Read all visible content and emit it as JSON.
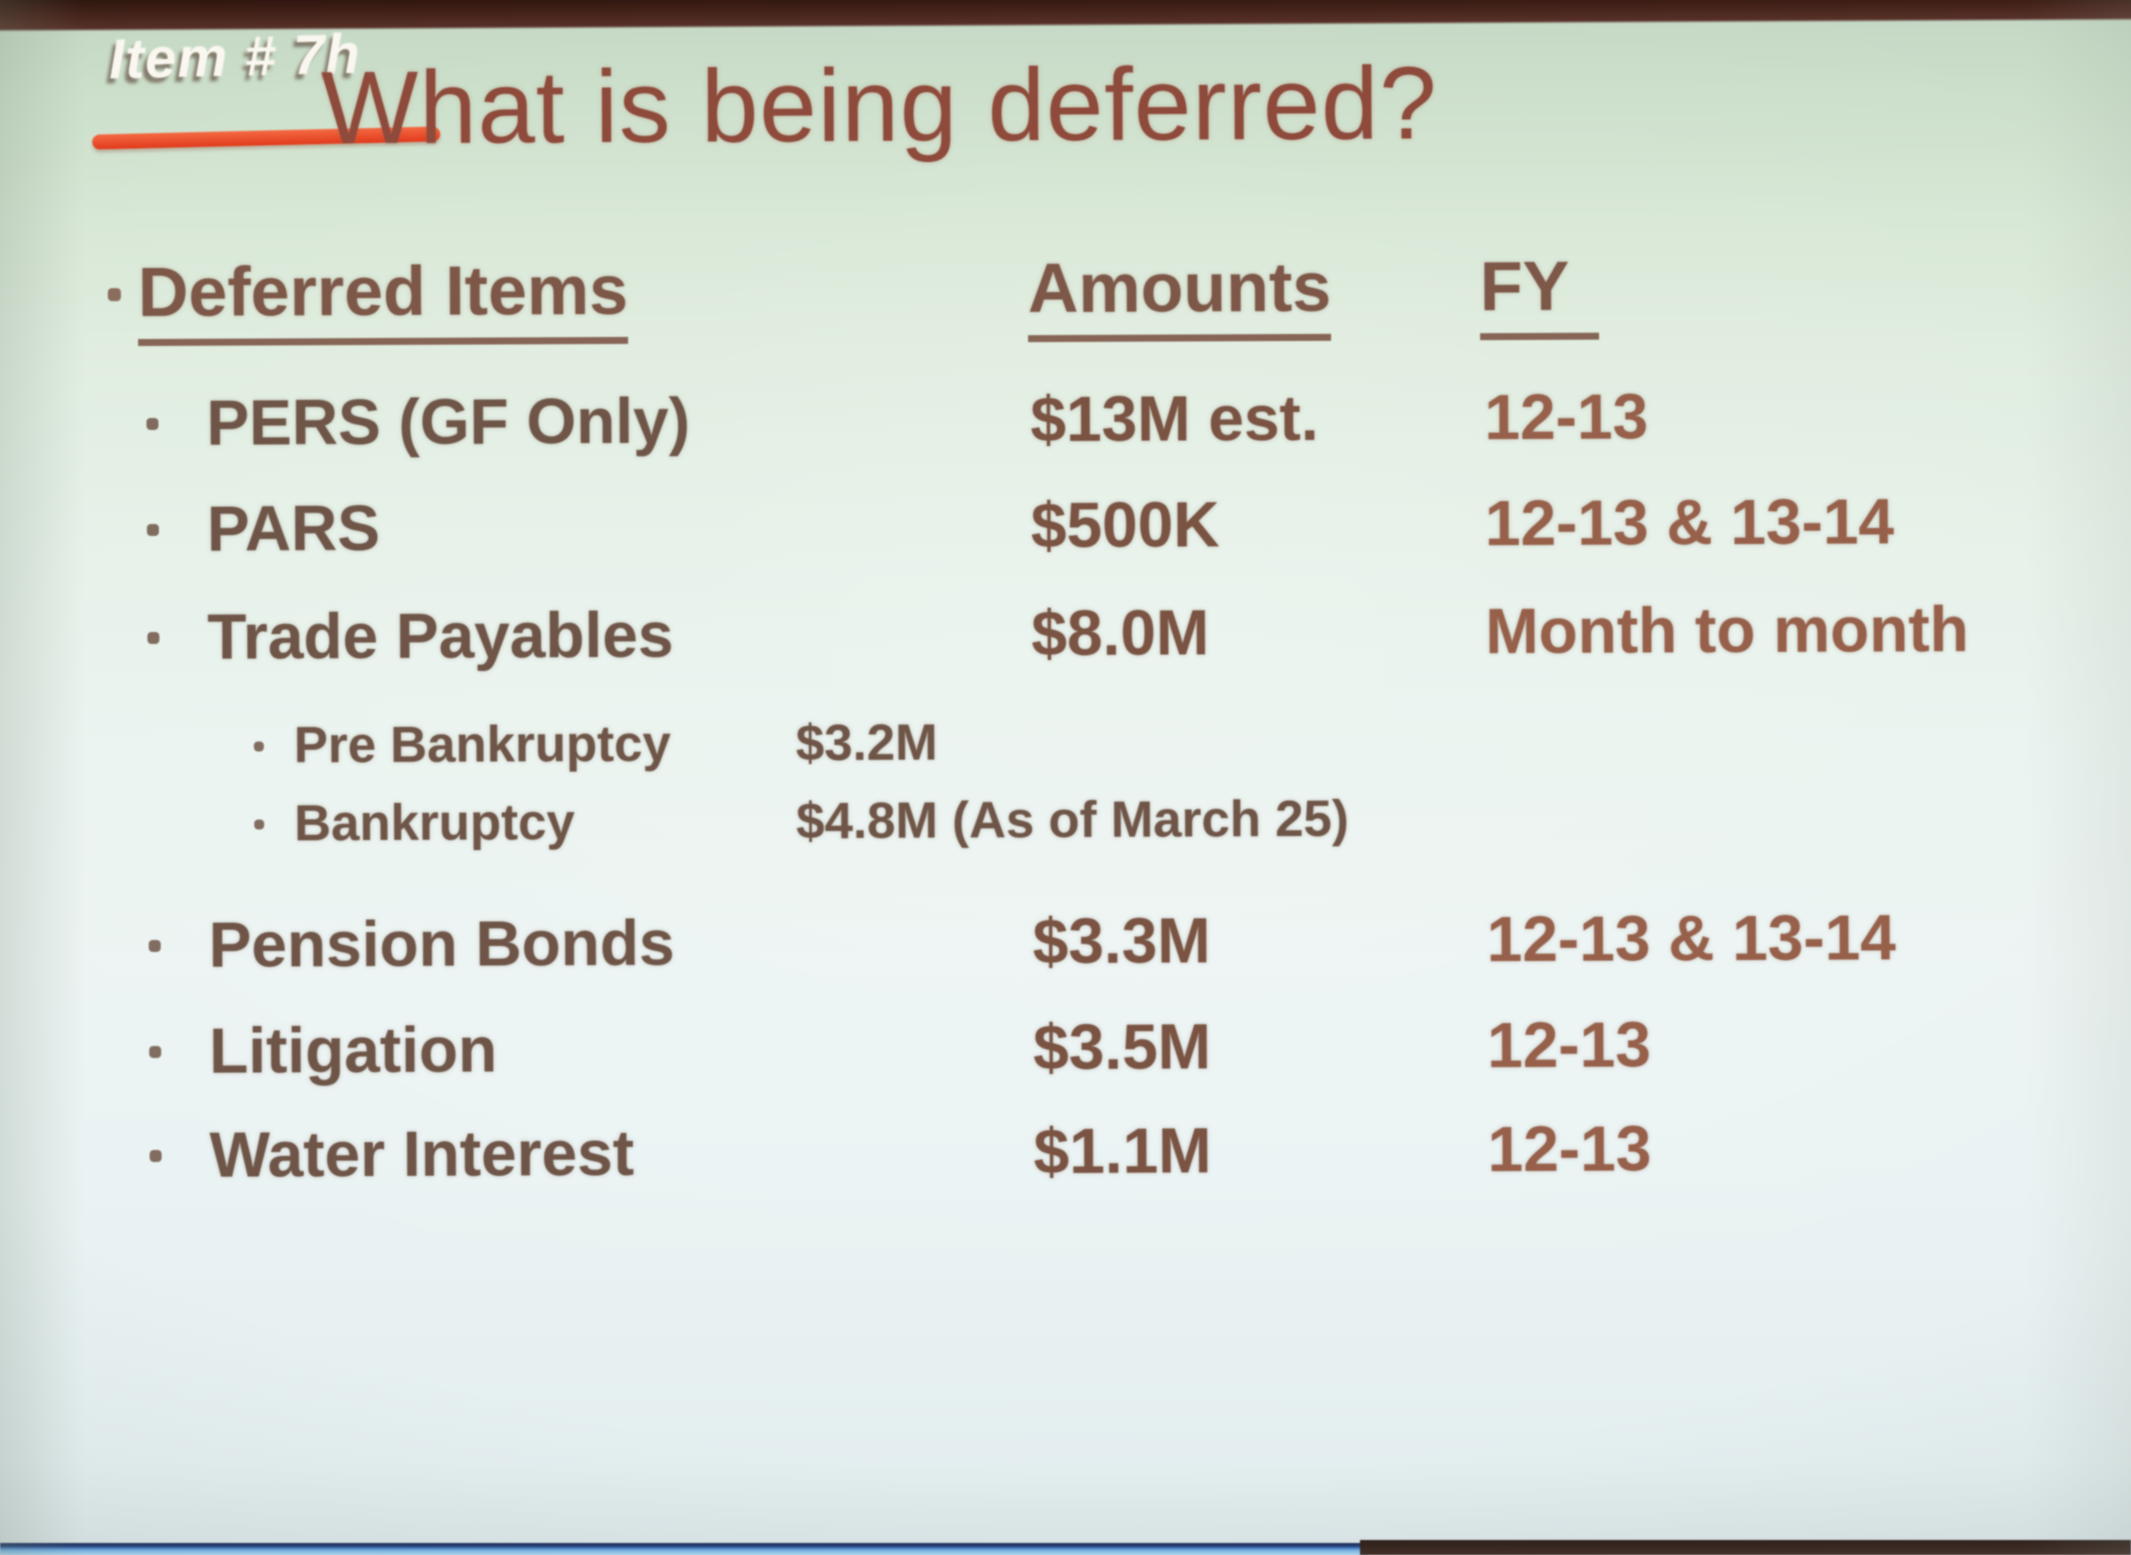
{
  "slide": {
    "item_tag": "Item # 7h",
    "title": "What is being deferred?",
    "table": {
      "headers": {
        "items": "Deferred Items",
        "amounts": "Amounts",
        "fy": "FY"
      },
      "rows": [
        {
          "label": "PERS (GF Only)",
          "amount": "$13M est.",
          "fy": "12-13",
          "indent": false
        },
        {
          "label": "PARS",
          "amount": "$500K",
          "fy": "12-13 & 13-14",
          "indent": false
        },
        {
          "label": "Trade Payables",
          "amount": "$8.0M",
          "fy": "Month to month",
          "indent": false
        },
        {
          "label": "Pre Bankruptcy",
          "amount": "$3.2M",
          "fy": "",
          "indent": true
        },
        {
          "label": "Bankruptcy",
          "amount": "$4.8M (As of March 25)",
          "fy": "",
          "indent": true
        },
        {
          "label": "Pension Bonds",
          "amount": "$3.3M",
          "fy": "12-13 & 13-14",
          "indent": false
        },
        {
          "label": "Litigation",
          "amount": "$3.5M",
          "fy": "12-13",
          "indent": false
        },
        {
          "label": "Water Interest",
          "amount": "$1.1M",
          "fy": "12-13",
          "indent": false
        }
      ]
    },
    "colors": {
      "background_top": "#c6dac6",
      "background_bottom": "#e8f1f1",
      "title_text": "#8e4a3b",
      "body_text": "#6e5547",
      "amount_text": "#7a5342",
      "fy_text": "#97604a",
      "item_tag_text": "#faf7f0",
      "item_tag_underline": "#e64a2c",
      "top_bar": "#44231a",
      "bottom_bar_blue": "#8cc6f2",
      "bottom_bar_brown": "#3a221a"
    }
  }
}
